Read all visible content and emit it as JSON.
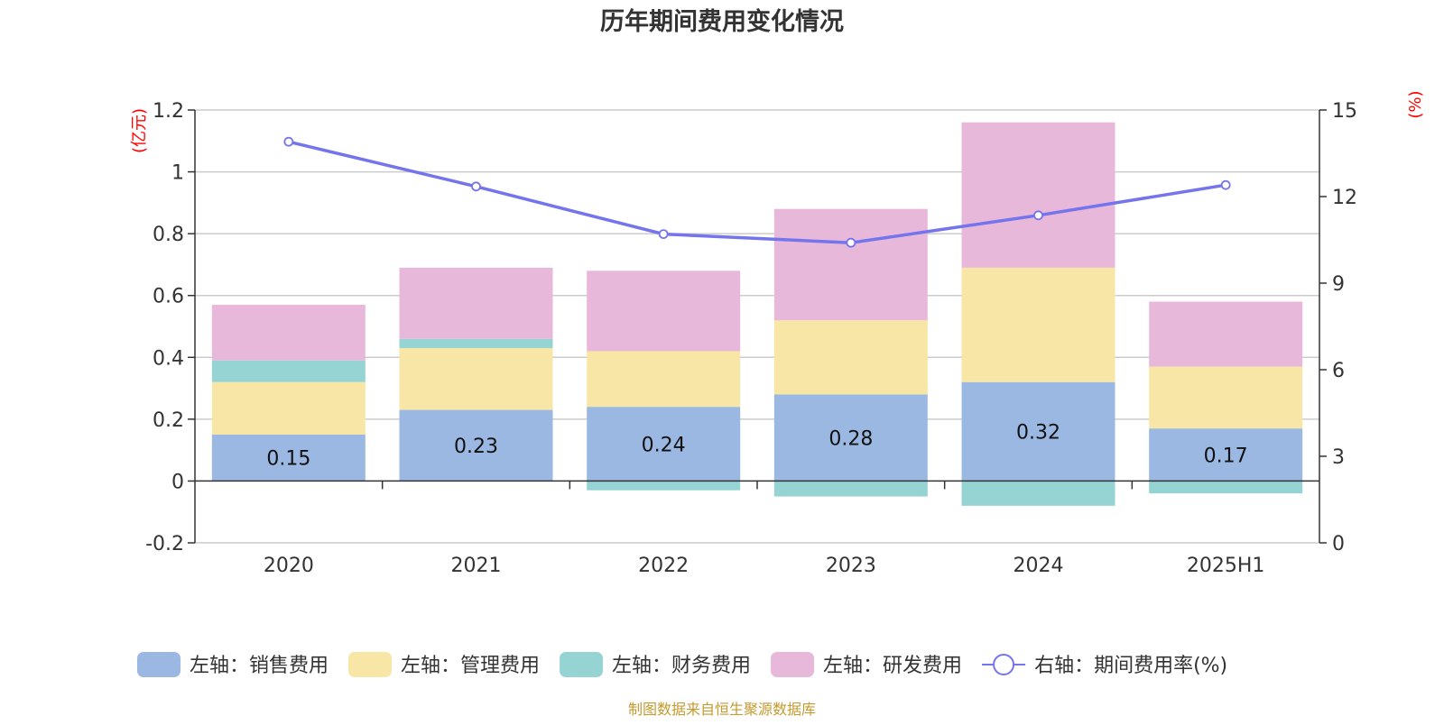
{
  "title": "历年期间费用变化情况",
  "footer": "制图数据来自恒生聚源数据库",
  "colors": {
    "sales": "#9bb8e2",
    "admin": "#f8e6a7",
    "finance": "#96d4d4",
    "rnd": "#e8b8da",
    "rate": "#7474ec",
    "axis_unit": "#ff0000",
    "footer": "#c59a2e",
    "grid": "#cccccc",
    "text": "#333333"
  },
  "chart_data": {
    "type": "bar",
    "stacked": true,
    "categories": [
      "2020",
      "2021",
      "2022",
      "2023",
      "2024",
      "2025H1"
    ],
    "left_axis": {
      "unit_label": "(亿元)",
      "ylim": [
        -0.2,
        1.2
      ],
      "ticks": [
        "-0.2",
        "0",
        "0.2",
        "0.4",
        "0.6",
        "0.8",
        "1",
        "1.2"
      ]
    },
    "right_axis": {
      "unit_label": "(%)",
      "ylim": [
        0,
        15
      ],
      "ticks": [
        "0",
        "3",
        "6",
        "9",
        "12",
        "15"
      ]
    },
    "series": [
      {
        "key": "sales",
        "name": "左轴：销售费用",
        "axis": "left",
        "values": [
          0.15,
          0.23,
          0.24,
          0.28,
          0.32,
          0.17
        ],
        "labels": [
          "0.15",
          "0.23",
          "0.24",
          "0.28",
          "0.32",
          "0.17"
        ]
      },
      {
        "key": "admin",
        "name": "左轴：管理费用",
        "axis": "left",
        "values": [
          0.17,
          0.2,
          0.18,
          0.24,
          0.37,
          0.2
        ]
      },
      {
        "key": "finance",
        "name": "左轴：财务费用",
        "axis": "left",
        "values": [
          0.07,
          0.03,
          -0.03,
          -0.05,
          -0.08,
          -0.04
        ]
      },
      {
        "key": "rnd",
        "name": "左轴：研发费用",
        "axis": "left",
        "values": [
          0.18,
          0.23,
          0.26,
          0.36,
          0.47,
          0.21
        ]
      },
      {
        "key": "rate",
        "name": "右轴：期间费用率(%)",
        "axis": "right",
        "type": "line",
        "values": [
          13.9,
          12.35,
          10.7,
          10.4,
          11.35,
          12.4
        ]
      }
    ],
    "grid": true,
    "legend_position": "bottom"
  }
}
